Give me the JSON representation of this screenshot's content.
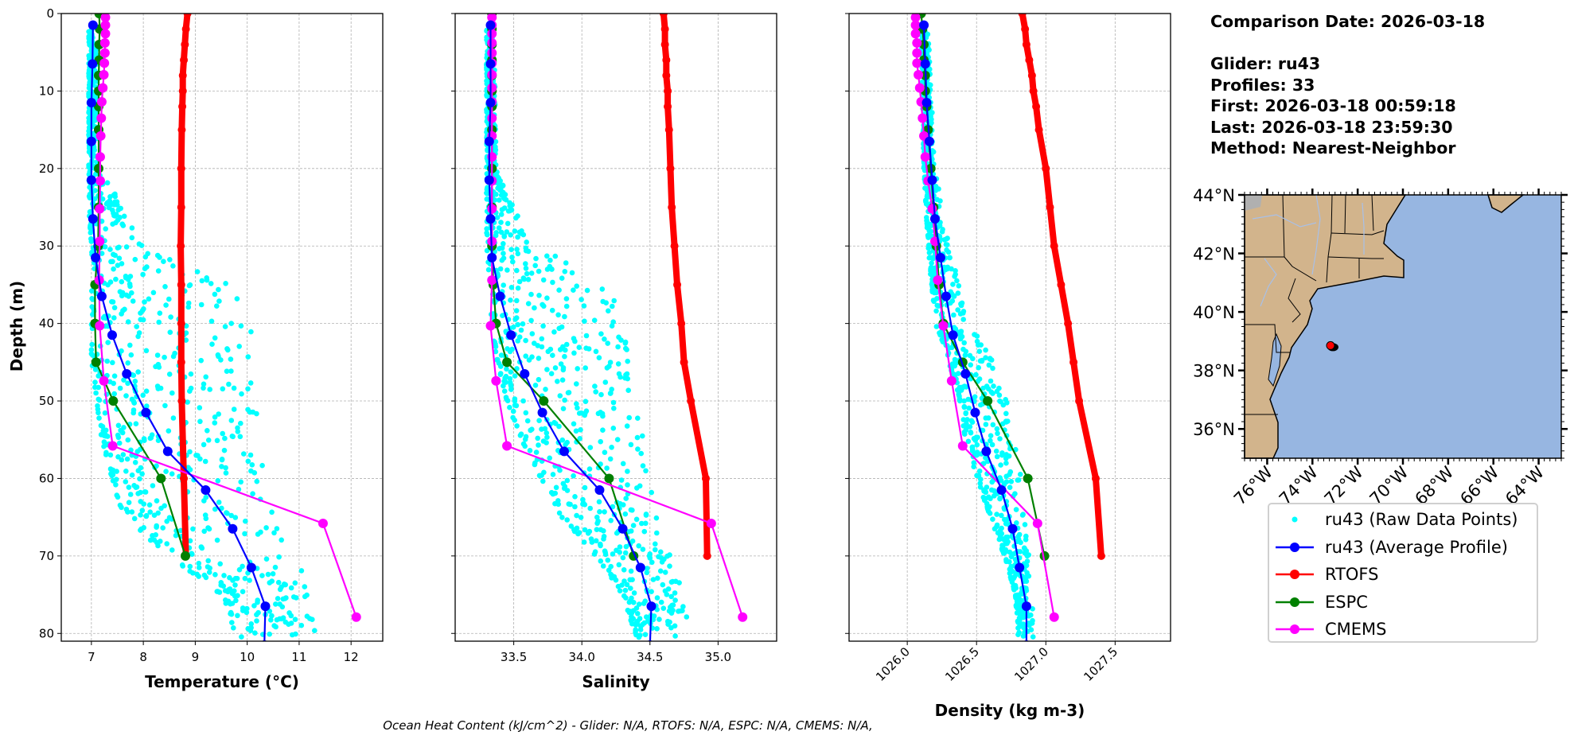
{
  "info": {
    "comparison_date": "Comparison Date: 2026-03-18",
    "glider": "Glider: ru43",
    "profiles": "Profiles: 33",
    "first": "First: 2026-03-18 00:59:18",
    "last": "Last: 2026-03-18 23:59:30",
    "method": "Method: Nearest-Neighbor"
  },
  "footer": "Ocean Heat Content (kJ/cm^2) - Glider: N/A,  RTOFS: N/A,  ESPC: N/A,  CMEMS: N/A,",
  "legend": [
    {
      "label": "ru43 (Raw Data Points)",
      "color": "#00ffff",
      "style": "dot"
    },
    {
      "label": "ru43 (Average Profile)",
      "color": "#0000ff",
      "style": "line-marker"
    },
    {
      "label": "RTOFS",
      "color": "#ff0000",
      "style": "line-marker"
    },
    {
      "label": "ESPC",
      "color": "#008000",
      "style": "line-marker"
    },
    {
      "label": "CMEMS",
      "color": "#ff00ff",
      "style": "line-marker"
    }
  ],
  "map": {
    "lon_range": [
      -77,
      -63
    ],
    "lat_range": [
      35,
      44
    ],
    "lat_ticks": [
      44,
      42,
      40,
      38,
      36
    ],
    "lat_labels": [
      "44°N",
      "42°N",
      "40°N",
      "38°N",
      "36°N"
    ],
    "lon_ticks": [
      -76,
      -74,
      -72,
      -70,
      -68,
      -66,
      -64
    ],
    "lon_labels": [
      "76°W",
      "74°W",
      "72°W",
      "70°W",
      "68°W",
      "66°W",
      "64°W"
    ],
    "glider_position": {
      "lon": -73.2,
      "lat": 38.85
    },
    "colors": {
      "land": "#d2b48c",
      "ocean": "#97b6e1",
      "glider": "#ff0000"
    }
  },
  "chart_data": [
    {
      "type": "line",
      "xlabel": "Temperature (°C)",
      "ylabel": "Depth (m)",
      "xlim": [
        6.42,
        12.61
      ],
      "ylim": [
        81,
        0
      ],
      "grid": true,
      "xticks": [
        7,
        8,
        9,
        10,
        11,
        12
      ],
      "xtick_labels": [
        "7",
        "8",
        "9",
        "10",
        "11",
        "12"
      ],
      "yticks": [
        0,
        10,
        20,
        30,
        40,
        50,
        60,
        70,
        80
      ],
      "ytick_labels": [
        "0",
        "10",
        "20",
        "30",
        "40",
        "50",
        "60",
        "70",
        "80"
      ],
      "raw_envelope": {
        "name": "ru43 (Raw Data Points)",
        "depth": [
          2,
          20,
          22,
          25,
          30,
          35,
          40,
          45,
          50,
          55,
          60,
          65,
          70,
          75,
          80.5
        ],
        "min": [
          6.95,
          6.95,
          6.95,
          6.95,
          7.0,
          7.0,
          7.0,
          7.0,
          7.1,
          7.2,
          7.4,
          7.6,
          8.5,
          9.5,
          9.8
        ],
        "max": [
          7.1,
          7.15,
          7.35,
          7.6,
          8.0,
          9.9,
          10.1,
          10.2,
          10.2,
          10.2,
          10.4,
          10.5,
          10.9,
          11.3,
          11.4
        ]
      },
      "series": [
        {
          "name": "ru43 (Average Profile)",
          "depth": [
            1.5,
            6.5,
            11.5,
            16.5,
            21.5,
            26.5,
            31.5,
            36.5,
            41.5,
            46.5,
            51.5,
            56.5,
            61.5,
            66.5,
            71.5,
            76.5,
            81.5
          ],
          "values": [
            7.03,
            7.02,
            7.0,
            7.0,
            7.0,
            7.03,
            7.08,
            7.2,
            7.4,
            7.68,
            8.05,
            8.47,
            9.2,
            9.72,
            10.08,
            10.35,
            10.33
          ]
        },
        {
          "name": "RTOFS",
          "depth": [
            0,
            2,
            4,
            6,
            8,
            10,
            12,
            15,
            20,
            25,
            30,
            35,
            40,
            45,
            50,
            60,
            70
          ],
          "values": [
            8.85,
            8.82,
            8.8,
            8.78,
            8.76,
            8.76,
            8.75,
            8.74,
            8.73,
            8.73,
            8.72,
            8.73,
            8.73,
            8.73,
            8.74,
            8.78,
            8.82
          ]
        },
        {
          "name": "ESPC",
          "depth": [
            0,
            2,
            4,
            6,
            8,
            10,
            12,
            15,
            20,
            25,
            30,
            35,
            40,
            45,
            50,
            60,
            70
          ],
          "values": [
            7.15,
            7.16,
            7.15,
            7.15,
            7.14,
            7.14,
            7.14,
            7.14,
            7.14,
            7.14,
            7.13,
            7.07,
            7.07,
            7.09,
            7.42,
            8.34,
            8.81
          ]
        },
        {
          "name": "CMEMS",
          "depth": [
            0.5,
            1.5,
            2.6,
            3.8,
            5.1,
            6.4,
            7.9,
            9.6,
            11.4,
            13.5,
            15.8,
            18.5,
            21.6,
            25.2,
            29.4,
            34.4,
            40.3,
            47.4,
            55.8,
            65.8,
            77.9
          ],
          "values": [
            7.27,
            7.27,
            7.27,
            7.26,
            7.26,
            7.25,
            7.24,
            7.22,
            7.2,
            7.19,
            7.18,
            7.17,
            7.17,
            7.16,
            7.16,
            7.15,
            7.16,
            7.24,
            7.41,
            11.46,
            12.1
          ]
        }
      ]
    },
    {
      "type": "line",
      "xlabel": "Salinity",
      "xlim": [
        33.07,
        35.43
      ],
      "ylim": [
        81,
        0
      ],
      "grid": true,
      "xticks": [
        33.5,
        34.0,
        34.5,
        35.0
      ],
      "xtick_labels": [
        "33.5",
        "34.0",
        "34.5",
        "35.0"
      ],
      "yticks": [
        0,
        10,
        20,
        30,
        40,
        50,
        60,
        70,
        80
      ],
      "raw_envelope": {
        "name": "ru43 (Raw Data Points)",
        "depth": [
          2,
          20,
          25,
          30,
          35,
          40,
          45,
          50,
          55,
          60,
          65,
          70,
          75,
          80.5
        ],
        "min": [
          33.3,
          33.3,
          33.3,
          33.3,
          33.32,
          33.33,
          33.38,
          33.45,
          33.55,
          33.7,
          33.85,
          34.1,
          34.3,
          34.4
        ],
        "max": [
          33.36,
          33.37,
          33.5,
          33.7,
          34.2,
          34.3,
          34.35,
          34.4,
          34.45,
          34.5,
          34.55,
          34.65,
          34.75,
          34.8
        ]
      },
      "series": [
        {
          "name": "ru43 (Average Profile)",
          "depth": [
            1.5,
            6.5,
            11.5,
            16.5,
            21.5,
            26.5,
            31.5,
            36.5,
            41.5,
            46.5,
            51.5,
            56.5,
            61.5,
            66.5,
            71.5,
            76.5,
            81.5
          ],
          "values": [
            33.33,
            33.33,
            33.33,
            33.32,
            33.32,
            33.33,
            33.34,
            33.4,
            33.48,
            33.58,
            33.71,
            33.87,
            34.13,
            34.3,
            34.43,
            34.51,
            34.5
          ]
        },
        {
          "name": "RTOFS",
          "depth": [
            0,
            2,
            4,
            6,
            8,
            10,
            12,
            15,
            20,
            25,
            30,
            35,
            40,
            45,
            50,
            60,
            70
          ],
          "values": [
            34.6,
            34.61,
            34.61,
            34.62,
            34.62,
            34.63,
            34.63,
            34.64,
            34.65,
            34.66,
            34.68,
            34.7,
            34.73,
            34.75,
            34.8,
            34.91,
            34.92
          ]
        },
        {
          "name": "ESPC",
          "depth": [
            0,
            2,
            4,
            6,
            8,
            10,
            12,
            15,
            20,
            25,
            30,
            35,
            40,
            45,
            50,
            60,
            70
          ],
          "values": [
            33.34,
            33.34,
            33.34,
            33.34,
            33.34,
            33.34,
            33.34,
            33.34,
            33.34,
            33.34,
            33.34,
            33.35,
            33.37,
            33.45,
            33.72,
            34.2,
            34.38
          ]
        },
        {
          "name": "CMEMS",
          "depth": [
            0.5,
            1.5,
            2.6,
            3.8,
            5.1,
            6.4,
            7.9,
            9.6,
            11.4,
            13.5,
            15.8,
            18.5,
            21.6,
            25.2,
            29.4,
            34.4,
            40.3,
            47.4,
            55.8,
            65.8,
            77.9
          ],
          "values": [
            33.34,
            33.34,
            33.34,
            33.34,
            33.34,
            33.34,
            33.34,
            33.34,
            33.34,
            33.34,
            33.34,
            33.34,
            33.34,
            33.34,
            33.34,
            33.34,
            33.33,
            33.37,
            33.45,
            34.95,
            35.18
          ]
        }
      ]
    },
    {
      "type": "line",
      "xlabel": "Density (kg m-3)",
      "xlim": [
        1025.58,
        1027.9
      ],
      "ylim": [
        81,
        0
      ],
      "grid": true,
      "xticks": [
        1026.0,
        1026.5,
        1027.0,
        1027.5
      ],
      "xtick_labels": [
        "1026.0",
        "1026.5",
        "1027.0",
        "1027.5"
      ],
      "yticks": [
        0,
        10,
        20,
        30,
        40,
        50,
        60,
        70,
        80
      ],
      "raw_envelope": {
        "name": "ru43 (Raw Data Points)",
        "depth": [
          2,
          20,
          30,
          40,
          45,
          50,
          55,
          60,
          65,
          70,
          75,
          80.5
        ],
        "min": [
          1026.1,
          1026.12,
          1026.15,
          1026.2,
          1026.3,
          1026.38,
          1026.42,
          1026.5,
          1026.6,
          1026.7,
          1026.78,
          1026.8
        ],
        "max": [
          1026.15,
          1026.2,
          1026.3,
          1026.45,
          1026.62,
          1026.72,
          1026.78,
          1026.82,
          1026.86,
          1026.88,
          1026.9,
          1026.92
        ]
      },
      "series": [
        {
          "name": "ru43 (Average Profile)",
          "depth": [
            1.5,
            6.5,
            11.5,
            16.5,
            21.5,
            26.5,
            31.5,
            36.5,
            41.5,
            46.5,
            51.5,
            56.5,
            61.5,
            66.5,
            71.5,
            76.5,
            81.5
          ],
          "values": [
            1026.12,
            1026.13,
            1026.14,
            1026.16,
            1026.18,
            1026.2,
            1026.24,
            1026.28,
            1026.33,
            1026.42,
            1026.49,
            1026.57,
            1026.68,
            1026.76,
            1026.81,
            1026.86,
            1026.86
          ]
        },
        {
          "name": "RTOFS",
          "depth": [
            0,
            2,
            4,
            6,
            8,
            10,
            12,
            15,
            20,
            25,
            30,
            35,
            40,
            45,
            50,
            60,
            70
          ],
          "values": [
            1026.83,
            1026.85,
            1026.86,
            1026.88,
            1026.9,
            1026.91,
            1026.93,
            1026.95,
            1027.0,
            1027.03,
            1027.06,
            1027.11,
            1027.16,
            1027.2,
            1027.24,
            1027.36,
            1027.4
          ]
        },
        {
          "name": "ESPC",
          "depth": [
            0,
            2,
            4,
            6,
            8,
            10,
            12,
            15,
            20,
            25,
            30,
            35,
            40,
            45,
            50,
            60,
            70
          ],
          "values": [
            1026.1,
            1026.11,
            1026.12,
            1026.12,
            1026.13,
            1026.13,
            1026.14,
            1026.15,
            1026.17,
            1026.19,
            1026.21,
            1026.23,
            1026.26,
            1026.4,
            1026.58,
            1026.87,
            1026.99
          ]
        },
        {
          "name": "CMEMS",
          "depth": [
            0.5,
            1.5,
            2.6,
            3.8,
            5.1,
            6.4,
            7.9,
            9.6,
            11.4,
            13.5,
            15.8,
            18.5,
            21.6,
            25.2,
            29.4,
            34.4,
            40.3,
            47.4,
            55.8,
            65.8,
            77.9
          ],
          "values": [
            1026.06,
            1026.06,
            1026.06,
            1026.07,
            1026.07,
            1026.07,
            1026.08,
            1026.09,
            1026.1,
            1026.11,
            1026.12,
            1026.13,
            1026.15,
            1026.18,
            1026.2,
            1026.22,
            1026.26,
            1026.32,
            1026.4,
            1026.94,
            1027.06
          ]
        }
      ]
    }
  ]
}
